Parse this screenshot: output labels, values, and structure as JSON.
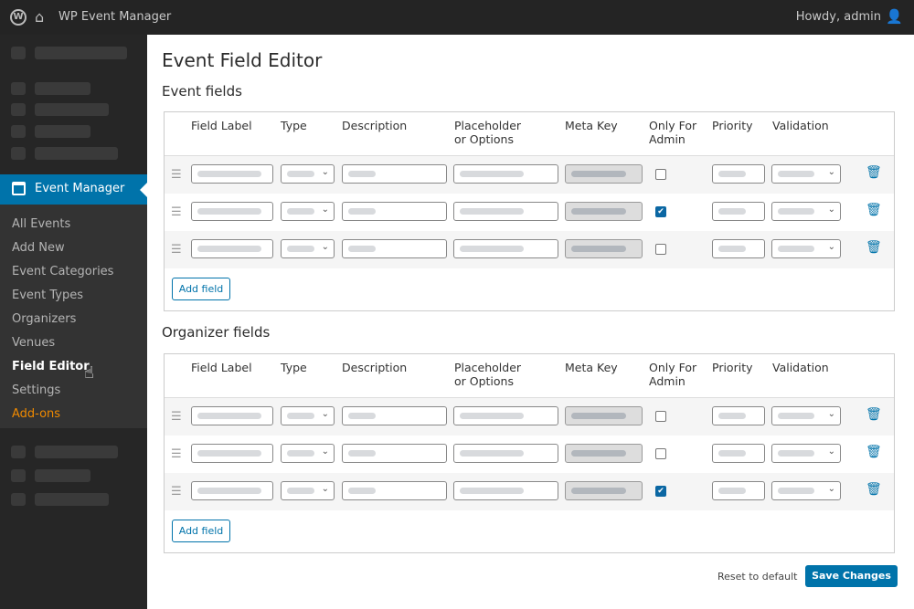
{
  "topbar": {
    "site_title": "WP Event Manager",
    "greeting": "Howdy, admin",
    "icons": [
      "wordpress-icon",
      "home-icon",
      "user-icon"
    ]
  },
  "sidebar": {
    "active": "Event Manager",
    "submenu": [
      {
        "label": "All Events",
        "state": "normal"
      },
      {
        "label": "Add New",
        "state": "normal"
      },
      {
        "label": "Event Categories",
        "state": "normal"
      },
      {
        "label": "Event Types",
        "state": "normal"
      },
      {
        "label": "Organizers",
        "state": "normal"
      },
      {
        "label": "Venues",
        "state": "normal"
      },
      {
        "label": "Field Editor",
        "state": "current"
      },
      {
        "label": "Settings",
        "state": "normal"
      },
      {
        "label": "Add-ons",
        "state": "highlight"
      }
    ]
  },
  "page_title": "Event Field Editor",
  "columns": [
    "Field Label",
    "Type",
    "Description",
    "Placeholder\nor Options",
    "Meta Key",
    "Only For\nAdmin",
    "Priority",
    "Validation"
  ],
  "sections": [
    {
      "title": "Event fields",
      "rows": [
        {
          "admin_only": false
        },
        {
          "admin_only": true
        },
        {
          "admin_only": false
        }
      ],
      "add_label": "Add field"
    },
    {
      "title": "Organizer fields",
      "rows": [
        {
          "admin_only": false
        },
        {
          "admin_only": false
        },
        {
          "admin_only": true
        }
      ],
      "add_label": "Add field"
    }
  ],
  "footer": {
    "reset_label": "Reset to default",
    "save_label": "Save Changes"
  },
  "colors": {
    "accent": "#0073aa",
    "addons": "#f08a00",
    "sidebar": "#262626"
  }
}
